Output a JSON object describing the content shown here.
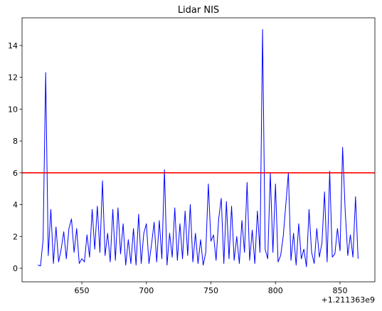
{
  "chart_data": {
    "type": "line",
    "title": "Lidar NIS",
    "x_offset_label": "+1.211363e9",
    "x": [
      616,
      618,
      620,
      622,
      624,
      626,
      628,
      630,
      632,
      634,
      636,
      638,
      640,
      642,
      644,
      646,
      648,
      650,
      652,
      654,
      656,
      658,
      660,
      662,
      664,
      666,
      668,
      670,
      672,
      674,
      676,
      678,
      680,
      682,
      684,
      686,
      688,
      690,
      692,
      694,
      696,
      698,
      700,
      702,
      704,
      706,
      708,
      710,
      712,
      714,
      716,
      718,
      720,
      722,
      724,
      726,
      728,
      730,
      732,
      734,
      736,
      738,
      740,
      742,
      744,
      746,
      748,
      750,
      752,
      754,
      756,
      758,
      760,
      762,
      764,
      766,
      768,
      770,
      772,
      774,
      776,
      778,
      780,
      782,
      784,
      786,
      788,
      790,
      792,
      794,
      796,
      798,
      800,
      802,
      804,
      806,
      808,
      810,
      812,
      814,
      816,
      818,
      820,
      822,
      824,
      826,
      828,
      830,
      832,
      834,
      836,
      838,
      840,
      842,
      844,
      846,
      848,
      850,
      852,
      854,
      856,
      858,
      860,
      862,
      864
    ],
    "series": [
      {
        "name": "NIS",
        "color": "#0000ff",
        "values": [
          0.2,
          0.15,
          1.8,
          12.3,
          0.8,
          3.7,
          0.3,
          2.6,
          0.4,
          1.2,
          2.3,
          0.6,
          2.5,
          3.1,
          1.0,
          2.5,
          0.3,
          0.6,
          0.4,
          2.1,
          0.7,
          3.7,
          1.2,
          3.9,
          1.0,
          5.5,
          0.8,
          2.2,
          0.4,
          3.7,
          0.5,
          3.8,
          0.9,
          2.8,
          0.2,
          1.8,
          0.3,
          2.5,
          0.2,
          3.4,
          0.3,
          2.2,
          2.8,
          0.3,
          1.5,
          2.9,
          0.4,
          3.0,
          0.6,
          6.2,
          0.2,
          2.2,
          0.7,
          3.8,
          0.5,
          2.8,
          0.6,
          3.6,
          0.8,
          4.0,
          0.4,
          2.2,
          0.3,
          1.8,
          0.2,
          1.0,
          5.3,
          1.7,
          2.1,
          0.5,
          3.1,
          4.4,
          0.3,
          4.2,
          0.6,
          3.9,
          0.5,
          2.0,
          0.3,
          3.0,
          1.0,
          5.4,
          0.5,
          2.4,
          0.3,
          3.6,
          1.0,
          15.0,
          1.2,
          0.6,
          6.0,
          1.0,
          5.3,
          0.4,
          0.8,
          2.0,
          4.0,
          6.0,
          0.5,
          2.2,
          0.2,
          2.8,
          0.6,
          1.2,
          0.1,
          3.7,
          1.0,
          0.3,
          2.5,
          0.7,
          1.6,
          4.8,
          0.4,
          6.1,
          0.7,
          0.9,
          2.5,
          1.1,
          7.6,
          3.6,
          0.8,
          2.1,
          0.7,
          4.5,
          0.6
        ]
      }
    ],
    "hline": {
      "value": 6,
      "color": "#ff0000"
    },
    "xlim": [
      603.7,
      877
    ],
    "ylim": [
      -0.85,
      15.74
    ],
    "xticks": [
      650,
      700,
      750,
      800,
      850
    ],
    "yticks": [
      0,
      2,
      4,
      6,
      8,
      10,
      12,
      14
    ],
    "grid": false
  }
}
